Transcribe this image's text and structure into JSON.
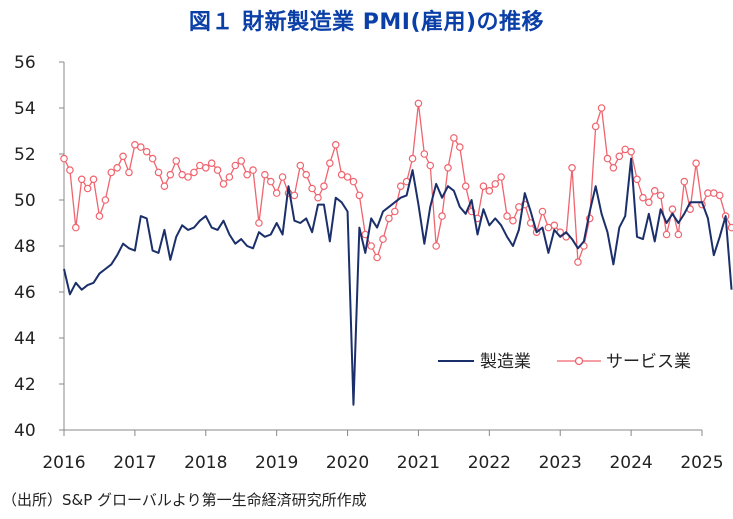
{
  "chart_data": {
    "type": "line",
    "title": "図１ 財新製造業 PMI(雇用)の推移",
    "source": "（出所）S&P グローバルより第一生命経済研究所作成",
    "ylim": [
      40,
      56
    ],
    "yticks": [
      "40",
      "42",
      "44",
      "46",
      "48",
      "50",
      "52",
      "54",
      "56"
    ],
    "xticks": [
      "2016",
      "2017",
      "2018",
      "2019",
      "2020",
      "2021",
      "2022",
      "2023",
      "2024",
      "2025"
    ],
    "xrange": [
      2016,
      2025
    ],
    "legend": {
      "position": "bottom-right"
    },
    "series": [
      {
        "name": "製造業",
        "color": "#1b2f6b",
        "marker": "none",
        "start": 2016.0,
        "step_months": 1,
        "values": [
          47.0,
          45.9,
          46.4,
          46.1,
          46.3,
          46.4,
          46.8,
          47.0,
          47.2,
          47.6,
          48.1,
          47.9,
          47.8,
          49.3,
          49.2,
          47.8,
          47.7,
          48.7,
          47.4,
          48.4,
          48.9,
          48.7,
          48.8,
          49.1,
          49.3,
          48.8,
          48.7,
          49.1,
          48.5,
          48.1,
          48.3,
          48.0,
          47.9,
          48.6,
          48.4,
          48.5,
          49.0,
          48.5,
          50.6,
          49.1,
          49.0,
          49.2,
          48.6,
          49.8,
          49.8,
          48.2,
          50.1,
          49.9,
          49.5,
          41.1,
          48.8,
          47.7,
          49.2,
          48.8,
          49.5,
          49.7,
          49.9,
          50.1,
          50.2,
          51.3,
          49.8,
          48.1,
          49.7,
          50.7,
          50.1,
          50.6,
          50.4,
          49.7,
          49.4,
          50.0,
          48.5,
          49.6,
          48.9,
          49.2,
          48.9,
          48.4,
          48.0,
          48.7,
          50.3,
          49.5,
          48.6,
          48.8,
          47.7,
          48.7,
          48.4,
          48.6,
          48.3,
          47.9,
          48.2,
          49.5,
          50.6,
          49.4,
          48.6,
          47.2,
          48.8,
          49.3,
          51.8,
          48.4,
          48.3,
          49.4,
          48.2,
          49.6,
          49.0,
          49.4,
          49.0,
          49.4,
          49.9,
          49.9,
          49.9,
          49.2,
          47.6,
          48.4,
          49.3,
          46.1
        ]
      },
      {
        "name": "サービス業",
        "color": "#f0646e",
        "marker": "circle",
        "start": 2016.0,
        "step_months": 1,
        "values": [
          51.8,
          51.3,
          48.8,
          50.9,
          50.5,
          50.9,
          49.3,
          50.0,
          51.2,
          51.4,
          51.9,
          51.2,
          52.4,
          52.3,
          52.1,
          51.8,
          51.2,
          50.6,
          51.1,
          51.7,
          51.1,
          51.0,
          51.2,
          51.5,
          51.4,
          51.6,
          51.3,
          50.7,
          51.0,
          51.5,
          51.7,
          51.1,
          51.3,
          49.0,
          51.1,
          50.8,
          50.3,
          51.0,
          50.3,
          50.2,
          51.5,
          51.1,
          50.5,
          50.1,
          50.6,
          51.6,
          52.4,
          51.1,
          51.0,
          50.8,
          50.2,
          48.5,
          48.0,
          47.5,
          48.3,
          49.2,
          49.5,
          50.6,
          50.8,
          51.8,
          54.2,
          52.0,
          51.5,
          48.0,
          49.3,
          51.4,
          52.7,
          52.3,
          50.6,
          49.5,
          49.2,
          50.6,
          50.4,
          50.7,
          51.0,
          49.3,
          49.1,
          49.7,
          49.8,
          49.0,
          48.6,
          49.5,
          48.8,
          48.9,
          48.6,
          48.4,
          51.4,
          47.3,
          48.0,
          49.2,
          53.2,
          54.0,
          51.8,
          51.4,
          51.9,
          52.2,
          52.1,
          50.9,
          50.1,
          49.9,
          50.4,
          50.2,
          48.5,
          49.6,
          48.5,
          50.8,
          49.6,
          51.6,
          49.8,
          50.3,
          50.3,
          50.2,
          49.3,
          48.8
        ]
      }
    ]
  }
}
